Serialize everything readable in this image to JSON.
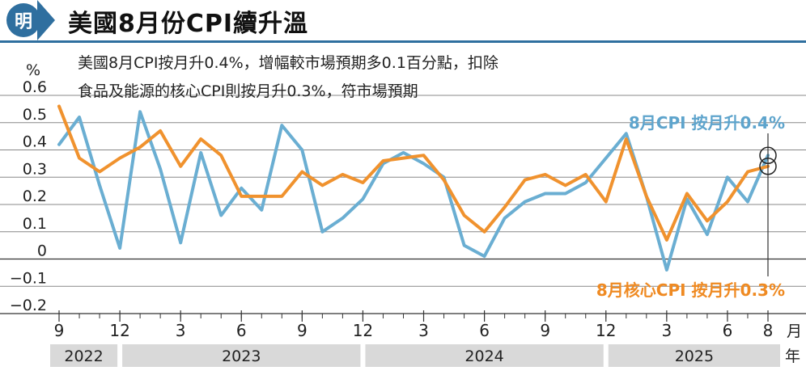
{
  "header": {
    "logo_char": "明",
    "title": "美國8月份CPI續升溫"
  },
  "colors": {
    "cpi": "#6aaed2",
    "core": "#f0922e",
    "accent": "#2f6f9f",
    "cpi_label": "#5ea4cc",
    "core_label": "#ef8a22"
  },
  "chart_data": {
    "type": "line",
    "title": "美國8月份CPI續升溫",
    "ylabel": "%",
    "xlabel_unit": "月",
    "year_unit": "年",
    "ylim": [
      -0.2,
      0.6
    ],
    "yticks": [
      0.6,
      0.5,
      0.4,
      0.3,
      0.2,
      0.1,
      0,
      -0.1,
      -0.2
    ],
    "ytick_labels": [
      "0.6",
      "0.5",
      "0.4",
      "0.3",
      "0.2",
      "0.1",
      "0",
      "−0.1",
      "−0.2"
    ],
    "x_tick_labels": [
      "9",
      "12",
      "3",
      "6",
      "9",
      "12",
      "3",
      "6",
      "9",
      "12",
      "3",
      "6",
      "8"
    ],
    "x_tick_positions": [
      0,
      3,
      6,
      9,
      12,
      15,
      18,
      21,
      24,
      27,
      30,
      33,
      35
    ],
    "years": [
      {
        "label": "2022",
        "start": 0,
        "end": 3
      },
      {
        "label": "2023",
        "start": 3,
        "end": 15
      },
      {
        "label": "2024",
        "start": 15,
        "end": 27
      },
      {
        "label": "2025",
        "start": 27,
        "end": 35
      }
    ],
    "note": [
      "美國8月CPI按月升0.4%，增幅較市場預期多0.1百分點，扣除",
      "食品及能源的核心CPI則按月升0.3%，符市場預期"
    ],
    "series": [
      {
        "name": "8月CPI 按月升0.4%",
        "label": "8月CPI 按月升0.4%",
        "values": [
          0.42,
          0.52,
          0.27,
          0.04,
          0.54,
          0.33,
          0.06,
          0.39,
          0.16,
          0.26,
          0.18,
          0.49,
          0.4,
          0.1,
          0.15,
          0.22,
          0.35,
          0.39,
          0.35,
          0.3,
          0.05,
          0.01,
          0.15,
          0.21,
          0.24,
          0.24,
          0.28,
          0.37,
          0.46,
          0.23,
          -0.04,
          0.22,
          0.09,
          0.3,
          0.21,
          0.38
        ]
      },
      {
        "name": "8月核心CPI 按月升0.3%",
        "label": "8月核心CPI 按月升0.3%",
        "values": [
          0.56,
          0.37,
          0.32,
          0.37,
          0.41,
          0.47,
          0.34,
          0.44,
          0.38,
          0.23,
          0.23,
          0.23,
          0.32,
          0.27,
          0.31,
          0.28,
          0.36,
          0.37,
          0.38,
          0.29,
          0.16,
          0.1,
          0.19,
          0.29,
          0.31,
          0.27,
          0.31,
          0.21,
          0.44,
          0.23,
          0.07,
          0.24,
          0.14,
          0.21,
          0.32,
          0.34
        ]
      }
    ]
  }
}
